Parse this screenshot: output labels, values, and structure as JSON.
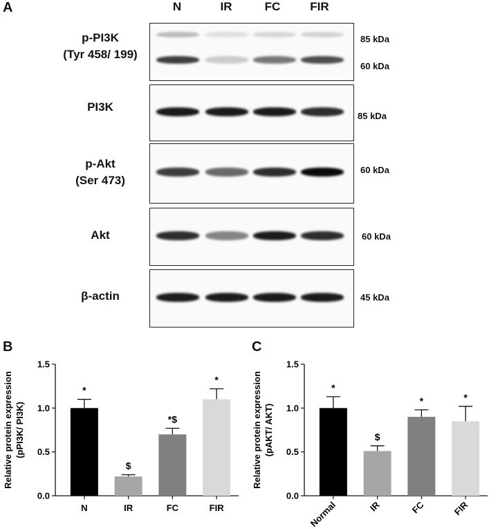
{
  "panelA": {
    "letter": "A",
    "lanes": [
      "N",
      "IR",
      "FC",
      "FIR"
    ],
    "blots": [
      {
        "label_lines": [
          "p-PI3K",
          "(Tyr 458/ 199)"
        ],
        "kda": [
          "85 kDa",
          "60 kDa"
        ],
        "upper_intensity": [
          0.35,
          0.12,
          0.18,
          0.2
        ],
        "lower_intensity": [
          0.85,
          0.25,
          0.65,
          0.8
        ]
      },
      {
        "label_lines": [
          "PI3K"
        ],
        "kda": [
          "85 kDa"
        ],
        "intensity": [
          0.95,
          0.95,
          0.95,
          0.9
        ]
      },
      {
        "label_lines": [
          "p-Akt",
          "(Ser 473)"
        ],
        "kda": [
          "60 kDa"
        ],
        "intensity": [
          0.85,
          0.7,
          0.9,
          1.0
        ]
      },
      {
        "label_lines": [
          "Akt"
        ],
        "kda": [
          "60 kDa"
        ],
        "intensity": [
          0.9,
          0.6,
          0.95,
          0.9
        ]
      },
      {
        "label_lines": [
          "β-actin"
        ],
        "kda": [
          "45 kDa"
        ],
        "intensity": [
          0.95,
          0.95,
          0.95,
          0.95
        ]
      }
    ]
  },
  "chart_data": [
    {
      "panel": "B",
      "type": "bar",
      "categories": [
        "N",
        "IR",
        "FC",
        "FIR"
      ],
      "values": [
        1.0,
        0.22,
        0.7,
        1.1
      ],
      "errors": [
        0.1,
        0.02,
        0.07,
        0.12
      ],
      "annotations": [
        "*",
        "$",
        "*$",
        "*"
      ],
      "colors": [
        "#000000",
        "#a6a6a6",
        "#808080",
        "#d9d9d9"
      ],
      "ylabel": "Relative protein expression (pPI3K/ PI3K)",
      "ylim": [
        0,
        1.5
      ],
      "yticks": [
        "0.0",
        "0.5",
        "1.0",
        "1.5"
      ]
    },
    {
      "panel": "C",
      "type": "bar",
      "categories": [
        "Normal",
        "IR",
        "FC",
        "FIR"
      ],
      "values": [
        1.0,
        0.51,
        0.9,
        0.85
      ],
      "errors": [
        0.13,
        0.06,
        0.08,
        0.17
      ],
      "annotations": [
        "*",
        "$",
        "*",
        "*"
      ],
      "colors": [
        "#000000",
        "#a6a6a6",
        "#808080",
        "#d9d9d9"
      ],
      "ylabel": "Relative protein expression (pAKT/ AKT)",
      "ylim": [
        0,
        1.5
      ],
      "yticks": [
        "0.0",
        "0.5",
        "1.0",
        "1.5"
      ]
    }
  ]
}
